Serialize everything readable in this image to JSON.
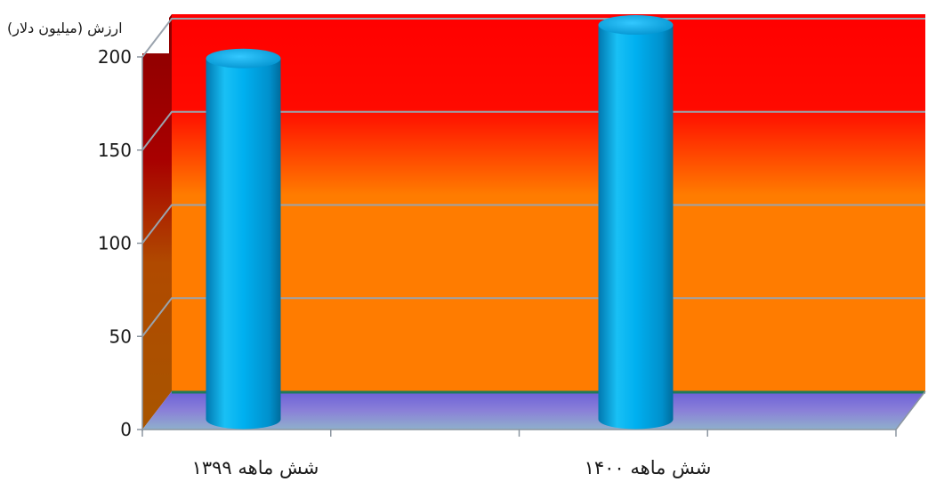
{
  "chart_data": {
    "type": "bar",
    "style": "3d-cylinder",
    "ylabel": "ارزش (میلیون دلار)",
    "categories": [
      "شش ماهه ۱۳۹۹",
      "شش ماهه ۱۴۰۰"
    ],
    "series": [
      {
        "values": [
          187,
          205
        ]
      }
    ],
    "ylim": [
      0,
      200
    ],
    "yticks": [
      "0",
      "50",
      "100",
      "150",
      "200"
    ],
    "grid": true,
    "legend": "none"
  },
  "colors": {
    "bar": "#00b0f0",
    "wall_top": "#ff0000",
    "wall_bottom": "#ff7c00",
    "floor": "#7f7fd4",
    "gridline": "#9aa3ad"
  }
}
